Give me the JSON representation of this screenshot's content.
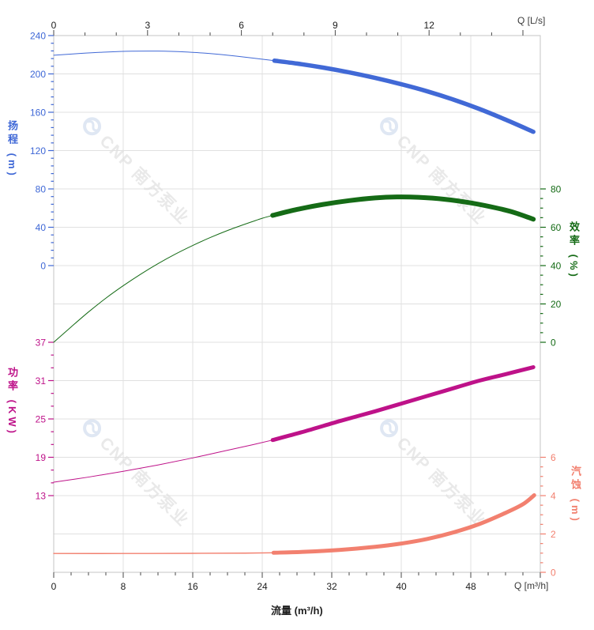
{
  "watermark": {
    "text": "CNP 南方泵业"
  },
  "chart_data": {
    "type": "line",
    "title": "",
    "grid": true,
    "x_axis_bottom": {
      "label": "流量 (m³/h)",
      "unit_label": "Q [m³/h]",
      "ticks": [
        0,
        8,
        16,
        24,
        32,
        40,
        48
      ],
      "minor_step": 2,
      "range": [
        0,
        56
      ]
    },
    "x_axis_top": {
      "unit_label": "Q [L/s]",
      "ticks": [
        0,
        3,
        6,
        9,
        12
      ],
      "minor_step": 1,
      "range": [
        0,
        15.56
      ]
    },
    "y_axes": [
      {
        "id": "head",
        "title": "扬程 (m)",
        "side": "left",
        "color": "#3E67D6",
        "ticks": [
          240,
          200,
          160,
          120,
          80,
          40,
          0
        ],
        "minor_step": 8,
        "range": [
          0,
          240
        ]
      },
      {
        "id": "efficiency",
        "title": "效率 (%)",
        "side": "right",
        "color": "#156B16",
        "ticks": [
          80,
          60,
          40,
          20,
          0
        ],
        "minor_step": 5,
        "range": [
          0,
          80
        ]
      },
      {
        "id": "power",
        "title": "功率 (KW)",
        "side": "left",
        "color": "#BE1289",
        "ticks": [
          37,
          31,
          25,
          19,
          13
        ],
        "minor_step": 2,
        "range": [
          13,
          37
        ]
      },
      {
        "id": "npsh",
        "title": "汽蚀 (m)",
        "side": "right",
        "color": "#F2806F",
        "ticks": [
          6,
          4,
          2,
          0
        ],
        "minor_step": 0.5,
        "range": [
          0,
          6
        ]
      }
    ],
    "series": [
      {
        "id": "head",
        "name": "扬程",
        "axis": "head",
        "color": "#4169D6",
        "points_thin": [
          [
            0,
            219.5
          ],
          [
            3,
            221.3
          ],
          [
            6,
            222.8
          ],
          [
            9,
            223.7
          ],
          [
            12,
            223.8
          ],
          [
            15,
            223
          ],
          [
            18,
            221.2
          ],
          [
            21,
            218.6
          ],
          [
            25.4,
            213.8
          ]
        ],
        "points_bold": [
          [
            25.4,
            213.8
          ],
          [
            28,
            210.8
          ],
          [
            31,
            206.6
          ],
          [
            34,
            201.6
          ],
          [
            37,
            195.8
          ],
          [
            40,
            189.2
          ],
          [
            43,
            181.8
          ],
          [
            46,
            173.2
          ],
          [
            49,
            163.4
          ],
          [
            52,
            152.3
          ],
          [
            55.2,
            139.6
          ]
        ]
      },
      {
        "id": "efficiency",
        "name": "效率",
        "axis": "efficiency",
        "color": "#156B16",
        "points_thin": [
          [
            0,
            0
          ],
          [
            2,
            8
          ],
          [
            4,
            15.8
          ],
          [
            6,
            23
          ],
          [
            8,
            29.5
          ],
          [
            10,
            35.5
          ],
          [
            12,
            41
          ],
          [
            14,
            46
          ],
          [
            16,
            50.5
          ],
          [
            18,
            54.6
          ],
          [
            20,
            58.3
          ],
          [
            22,
            61.6
          ],
          [
            24,
            64.7
          ],
          [
            25.2,
            66.2
          ]
        ],
        "points_bold": [
          [
            25.2,
            66.2
          ],
          [
            28,
            69.3
          ],
          [
            31,
            71.9
          ],
          [
            34,
            73.9
          ],
          [
            37,
            75.3
          ],
          [
            39.5,
            75.8
          ],
          [
            42,
            75.6
          ],
          [
            45,
            74.6
          ],
          [
            48,
            72.7
          ],
          [
            51,
            70
          ],
          [
            53,
            67.7
          ],
          [
            55.2,
            64.2
          ]
        ]
      },
      {
        "id": "power",
        "name": "功率",
        "axis": "power",
        "color": "#BE1289",
        "points_thin": [
          [
            0,
            15.1
          ],
          [
            4,
            15.9
          ],
          [
            8,
            16.8
          ],
          [
            12,
            17.8
          ],
          [
            16,
            18.9
          ],
          [
            20,
            20.1
          ],
          [
            23,
            21
          ],
          [
            25.2,
            21.7
          ]
        ],
        "points_bold": [
          [
            25.2,
            21.7
          ],
          [
            29,
            23.1
          ],
          [
            33,
            24.7
          ],
          [
            37,
            26.2
          ],
          [
            41,
            27.8
          ],
          [
            45,
            29.4
          ],
          [
            49,
            31
          ],
          [
            52,
            32
          ],
          [
            55.2,
            33.1
          ]
        ]
      },
      {
        "id": "npsh",
        "name": "汽蚀",
        "axis": "npsh",
        "color": "#F2806F",
        "points_thin": [
          [
            0,
            0.98
          ],
          [
            8,
            0.98
          ],
          [
            16,
            0.99
          ],
          [
            22,
            1.0
          ],
          [
            25.3,
            1.02
          ]
        ],
        "points_bold": [
          [
            25.3,
            1.02
          ],
          [
            29,
            1.07
          ],
          [
            33,
            1.17
          ],
          [
            37,
            1.33
          ],
          [
            40,
            1.5
          ],
          [
            43,
            1.74
          ],
          [
            46,
            2.08
          ],
          [
            49,
            2.52
          ],
          [
            52,
            3.1
          ],
          [
            54,
            3.55
          ],
          [
            55.3,
            4.02
          ]
        ]
      }
    ]
  }
}
